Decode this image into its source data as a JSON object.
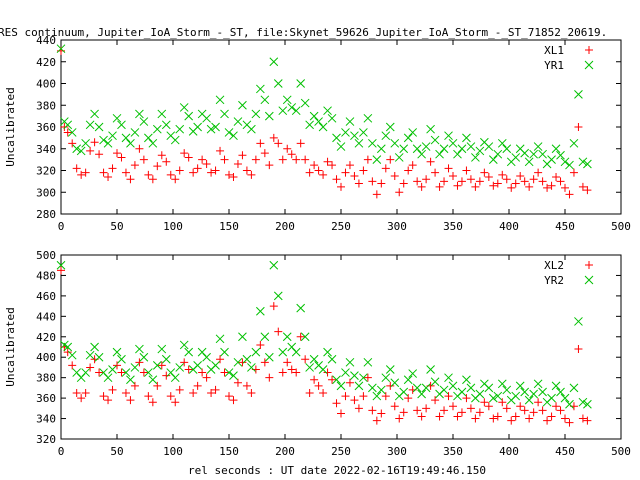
{
  "title": "RES continuum, Jupiter_IoA_Storm_-_ST, file:Skynet_59626_Jupiter_IoA_Storm_-_ST_71852_20619.",
  "xlabel": "rel seconds : UT date 2022-02-16T19:49:46.150",
  "colors": {
    "red": "#ff0000",
    "green": "#00c000"
  },
  "chart_data": [
    {
      "type": "scatter",
      "ylabel": "Uncalibrated",
      "xlim": [
        0,
        500
      ],
      "ylim": [
        280,
        440
      ],
      "xticks": [
        "0",
        "50",
        "100",
        "150",
        "200",
        "250",
        "300",
        "350",
        "400",
        "450",
        "500"
      ],
      "yticks": [
        "280",
        "300",
        "320",
        "340",
        "360",
        "380",
        "400",
        "420",
        "440"
      ],
      "legend": "top-right",
      "series": [
        {
          "name": "XL1",
          "marker": "plus",
          "color": "#ff0000",
          "x": [
            0,
            3,
            6,
            10,
            14,
            18,
            22,
            26,
            30,
            34,
            38,
            42,
            46,
            50,
            54,
            58,
            62,
            66,
            70,
            74,
            78,
            82,
            86,
            90,
            94,
            98,
            102,
            106,
            110,
            114,
            118,
            122,
            126,
            130,
            134,
            138,
            142,
            146,
            150,
            154,
            158,
            162,
            166,
            170,
            174,
            178,
            182,
            186,
            190,
            194,
            198,
            202,
            206,
            210,
            214,
            218,
            222,
            226,
            230,
            234,
            238,
            242,
            246,
            250,
            254,
            258,
            262,
            266,
            270,
            274,
            278,
            282,
            286,
            290,
            294,
            298,
            302,
            306,
            310,
            314,
            318,
            322,
            326,
            330,
            334,
            338,
            342,
            346,
            350,
            354,
            358,
            362,
            366,
            370,
            374,
            378,
            382,
            386,
            390,
            394,
            398,
            402,
            406,
            410,
            414,
            418,
            422,
            426,
            430,
            434,
            438,
            442,
            446,
            450,
            454,
            458,
            462,
            466,
            470
          ],
          "y": [
            430,
            360,
            355,
            345,
            322,
            316,
            318,
            338,
            346,
            335,
            318,
            314,
            322,
            336,
            332,
            318,
            312,
            325,
            340,
            330,
            316,
            312,
            324,
            334,
            328,
            316,
            312,
            320,
            336,
            332,
            318,
            322,
            330,
            326,
            318,
            320,
            338,
            330,
            316,
            314,
            326,
            334,
            320,
            316,
            330,
            345,
            336,
            325,
            350,
            345,
            330,
            340,
            335,
            330,
            345,
            330,
            318,
            325,
            320,
            316,
            328,
            325,
            312,
            305,
            318,
            325,
            315,
            308,
            320,
            330,
            310,
            298,
            308,
            322,
            330,
            315,
            300,
            308,
            320,
            325,
            310,
            305,
            312,
            328,
            318,
            305,
            310,
            322,
            315,
            306,
            310,
            320,
            312,
            305,
            310,
            318,
            314,
            306,
            308,
            316,
            312,
            304,
            308,
            315,
            310,
            305,
            312,
            318,
            310,
            304,
            306,
            314,
            310,
            304,
            298,
            318,
            360,
            305,
            302
          ]
        },
        {
          "name": "YR1",
          "marker": "cross",
          "color": "#00c000",
          "x": [
            0,
            3,
            6,
            10,
            14,
            18,
            22,
            26,
            30,
            34,
            38,
            42,
            46,
            50,
            54,
            58,
            62,
            66,
            70,
            74,
            78,
            82,
            86,
            90,
            94,
            98,
            102,
            106,
            110,
            114,
            118,
            122,
            126,
            130,
            134,
            138,
            142,
            146,
            150,
            154,
            158,
            162,
            166,
            170,
            174,
            178,
            182,
            186,
            190,
            194,
            198,
            202,
            206,
            210,
            214,
            218,
            222,
            226,
            230,
            234,
            238,
            242,
            246,
            250,
            254,
            258,
            262,
            266,
            270,
            274,
            278,
            282,
            286,
            290,
            294,
            298,
            302,
            306,
            310,
            314,
            318,
            322,
            326,
            330,
            334,
            338,
            342,
            346,
            350,
            354,
            358,
            362,
            366,
            370,
            374,
            378,
            382,
            386,
            390,
            394,
            398,
            402,
            406,
            410,
            414,
            418,
            422,
            426,
            430,
            434,
            438,
            442,
            446,
            450,
            454,
            458,
            462,
            466,
            470
          ],
          "y": [
            432,
            365,
            362,
            355,
            340,
            338,
            345,
            362,
            372,
            360,
            348,
            345,
            352,
            368,
            362,
            350,
            345,
            355,
            372,
            365,
            350,
            345,
            358,
            372,
            362,
            352,
            348,
            358,
            378,
            370,
            356,
            360,
            372,
            368,
            358,
            360,
            385,
            372,
            355,
            352,
            365,
            380,
            362,
            358,
            372,
            395,
            385,
            370,
            420,
            400,
            375,
            385,
            378,
            375,
            400,
            382,
            362,
            370,
            365,
            360,
            375,
            368,
            350,
            342,
            355,
            365,
            352,
            345,
            355,
            368,
            345,
            330,
            340,
            352,
            360,
            345,
            332,
            340,
            350,
            355,
            340,
            335,
            342,
            358,
            348,
            335,
            340,
            352,
            345,
            335,
            340,
            350,
            342,
            332,
            338,
            346,
            342,
            330,
            335,
            345,
            340,
            328,
            332,
            340,
            336,
            328,
            335,
            342,
            335,
            326,
            330,
            340,
            334,
            328,
            325,
            345,
            390,
            328,
            326
          ]
        }
      ]
    },
    {
      "type": "scatter",
      "ylabel": "Uncalibrated",
      "xlim": [
        0,
        500
      ],
      "ylim": [
        320,
        500
      ],
      "xticks": [
        "0",
        "50",
        "100",
        "150",
        "200",
        "250",
        "300",
        "350",
        "400",
        "450",
        "500"
      ],
      "yticks": [
        "320",
        "340",
        "360",
        "380",
        "400",
        "420",
        "440",
        "460",
        "480",
        "500"
      ],
      "legend": "top-right",
      "series": [
        {
          "name": "XL2",
          "marker": "plus",
          "color": "#ff0000",
          "x": [
            0,
            3,
            6,
            10,
            14,
            18,
            22,
            26,
            30,
            34,
            38,
            42,
            46,
            50,
            54,
            58,
            62,
            66,
            70,
            74,
            78,
            82,
            86,
            90,
            94,
            98,
            102,
            106,
            110,
            114,
            118,
            122,
            126,
            130,
            134,
            138,
            142,
            146,
            150,
            154,
            158,
            162,
            166,
            170,
            174,
            178,
            182,
            186,
            190,
            194,
            198,
            202,
            206,
            210,
            214,
            218,
            222,
            226,
            230,
            234,
            238,
            242,
            246,
            250,
            254,
            258,
            262,
            266,
            270,
            274,
            278,
            282,
            286,
            290,
            294,
            298,
            302,
            306,
            310,
            314,
            318,
            322,
            326,
            330,
            334,
            338,
            342,
            346,
            350,
            354,
            358,
            362,
            366,
            370,
            374,
            378,
            382,
            386,
            390,
            394,
            398,
            402,
            406,
            410,
            414,
            418,
            422,
            426,
            430,
            434,
            438,
            442,
            446,
            450,
            454,
            458,
            462,
            466,
            470
          ],
          "y": [
            485,
            410,
            405,
            392,
            365,
            360,
            365,
            390,
            398,
            385,
            362,
            358,
            368,
            392,
            385,
            365,
            358,
            372,
            395,
            385,
            362,
            356,
            372,
            392,
            382,
            362,
            356,
            368,
            395,
            388,
            365,
            372,
            385,
            380,
            365,
            368,
            398,
            385,
            362,
            358,
            375,
            395,
            372,
            365,
            388,
            412,
            395,
            380,
            450,
            425,
            385,
            395,
            388,
            385,
            420,
            398,
            365,
            378,
            372,
            365,
            385,
            378,
            355,
            345,
            362,
            375,
            358,
            350,
            362,
            380,
            348,
            338,
            345,
            362,
            372,
            352,
            340,
            346,
            360,
            368,
            348,
            342,
            350,
            372,
            358,
            342,
            348,
            362,
            352,
            342,
            346,
            360,
            350,
            340,
            346,
            356,
            352,
            340,
            342,
            356,
            350,
            338,
            342,
            352,
            348,
            340,
            346,
            356,
            348,
            338,
            342,
            352,
            348,
            340,
            336,
            352,
            408,
            340,
            338
          ]
        },
        {
          "name": "YR2",
          "marker": "cross",
          "color": "#00c000",
          "x": [
            0,
            3,
            6,
            10,
            14,
            18,
            22,
            26,
            30,
            34,
            38,
            42,
            46,
            50,
            54,
            58,
            62,
            66,
            70,
            74,
            78,
            82,
            86,
            90,
            94,
            98,
            102,
            106,
            110,
            114,
            118,
            122,
            126,
            130,
            134,
            138,
            142,
            146,
            150,
            154,
            158,
            162,
            166,
            170,
            174,
            178,
            182,
            186,
            190,
            194,
            198,
            202,
            206,
            210,
            214,
            218,
            222,
            226,
            230,
            234,
            238,
            242,
            246,
            250,
            254,
            258,
            262,
            266,
            270,
            274,
            278,
            282,
            286,
            290,
            294,
            298,
            302,
            306,
            310,
            314,
            318,
            322,
            326,
            330,
            334,
            338,
            342,
            346,
            350,
            354,
            358,
            362,
            366,
            370,
            374,
            378,
            382,
            386,
            390,
            394,
            398,
            402,
            406,
            410,
            414,
            418,
            422,
            426,
            430,
            434,
            438,
            442,
            446,
            450,
            454,
            458,
            462,
            466,
            470
          ],
          "y": [
            490,
            412,
            410,
            402,
            385,
            380,
            385,
            402,
            410,
            400,
            385,
            380,
            388,
            405,
            398,
            385,
            378,
            390,
            408,
            400,
            385,
            378,
            392,
            408,
            398,
            385,
            380,
            390,
            412,
            405,
            388,
            392,
            405,
            400,
            388,
            392,
            418,
            405,
            385,
            382,
            395,
            420,
            398,
            390,
            405,
            445,
            420,
            400,
            490,
            460,
            405,
            420,
            410,
            405,
            448,
            420,
            390,
            398,
            392,
            388,
            405,
            398,
            378,
            372,
            385,
            395,
            382,
            372,
            380,
            395,
            370,
            362,
            368,
            380,
            388,
            375,
            362,
            366,
            378,
            384,
            370,
            364,
            370,
            388,
            376,
            364,
            368,
            380,
            372,
            362,
            366,
            378,
            370,
            360,
            364,
            374,
            370,
            360,
            362,
            374,
            368,
            358,
            362,
            372,
            366,
            358,
            364,
            374,
            366,
            356,
            360,
            372,
            366,
            360,
            354,
            370,
            435,
            356,
            354
          ]
        }
      ]
    }
  ]
}
